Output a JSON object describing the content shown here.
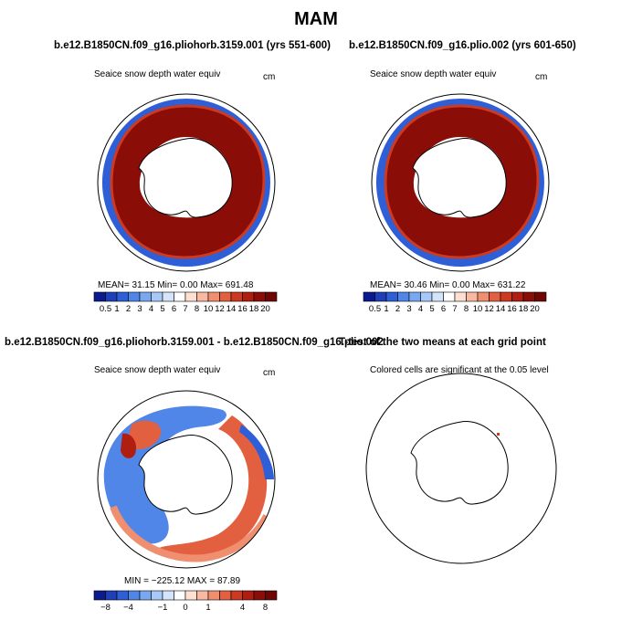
{
  "figure": {
    "title": "MAM"
  },
  "panels": [
    {
      "title": "b.e12.B1850CN.f09_g16.pliohorb.3159.001 (yrs 551-600)",
      "subtitle": "Seaice snow depth water equiv",
      "units": "cm",
      "stats": "MEAN=   31.15   Min=    0.00   Max= 691.48"
    },
    {
      "title": "b.e12.B1850CN.f09_g16.plio.002 (yrs 601-650)",
      "subtitle": "Seaice snow depth water equiv",
      "units": "cm",
      "stats": "MEAN=   30.46   Min=    0.00   Max=  631.22"
    },
    {
      "title": "b.e12.B1850CN.f09_g16.pliohorb.3159.001 - b.e12.B1850CN.f09_g16.plio.002",
      "subtitle": "Seaice snow depth water equiv",
      "units": "cm",
      "stats": "MIN = −225.12  MAX =    87.89"
    },
    {
      "title": "T-test of the two means at each grid point",
      "subtitle": "Colored cells are significant at the 0.05 level"
    }
  ],
  "colorbars": {
    "abs": {
      "labels": [
        "0.5",
        "1",
        "2",
        "3",
        "4",
        "5",
        "6",
        "7",
        "8",
        "10",
        "12",
        "14",
        "16",
        "18",
        "20"
      ],
      "colors": [
        "#0b1a8c",
        "#1f3fb8",
        "#2e5fd6",
        "#4f86e8",
        "#7aa8f0",
        "#a8c8f7",
        "#d4e4fb",
        "#ffffff",
        "#fde0d2",
        "#f8b9a0",
        "#f08f6f",
        "#e2603f",
        "#cc3a22",
        "#b01e12",
        "#8a0d08",
        "#6e0604"
      ]
    },
    "diff": {
      "labels": [
        "−8",
        "−4",
        "−1",
        "0",
        "1",
        "4",
        "8"
      ],
      "colors": [
        "#0b1a8c",
        "#1f3fb8",
        "#2e5fd6",
        "#4f86e8",
        "#7aa8f0",
        "#a8c8f7",
        "#d4e4fb",
        "#ffffff",
        "#fde0d2",
        "#f8b9a0",
        "#f08f6f",
        "#e2603f",
        "#cc3a22",
        "#b01e12",
        "#8a0d08",
        "#6e0604"
      ]
    }
  },
  "chart_data": [
    {
      "type": "heatmap",
      "title": "b.e12.B1850CN.f09_g16.pliohorb.3159.001 (yrs 551-600)",
      "variable": "Seaice snow depth water equiv",
      "units": "cm",
      "projection": "south polar stereographic",
      "stats": {
        "mean": 31.15,
        "min": 0.0,
        "max": 691.48
      },
      "colorbar_levels": [
        0.5,
        1,
        2,
        3,
        4,
        5,
        6,
        7,
        8,
        10,
        12,
        14,
        16,
        18,
        20
      ]
    },
    {
      "type": "heatmap",
      "title": "b.e12.B1850CN.f09_g16.plio.002 (yrs 601-650)",
      "variable": "Seaice snow depth water equiv",
      "units": "cm",
      "projection": "south polar stereographic",
      "stats": {
        "mean": 30.46,
        "min": 0.0,
        "max": 631.22
      },
      "colorbar_levels": [
        0.5,
        1,
        2,
        3,
        4,
        5,
        6,
        7,
        8,
        10,
        12,
        14,
        16,
        18,
        20
      ]
    },
    {
      "type": "heatmap",
      "title": "b.e12.B1850CN.f09_g16.pliohorb.3159.001 - b.e12.B1850CN.f09_g16.plio.002",
      "variable": "Seaice snow depth water equiv",
      "units": "cm",
      "projection": "south polar stereographic",
      "stats": {
        "min": -225.12,
        "max": 87.89
      },
      "colorbar_labels": [
        -8,
        -4,
        -1,
        0,
        1,
        4,
        8
      ]
    },
    {
      "type": "heatmap",
      "title": "T-test of the two means at each grid point",
      "note": "Colored cells are significant at the 0.05 level",
      "projection": "south polar stereographic"
    }
  ]
}
